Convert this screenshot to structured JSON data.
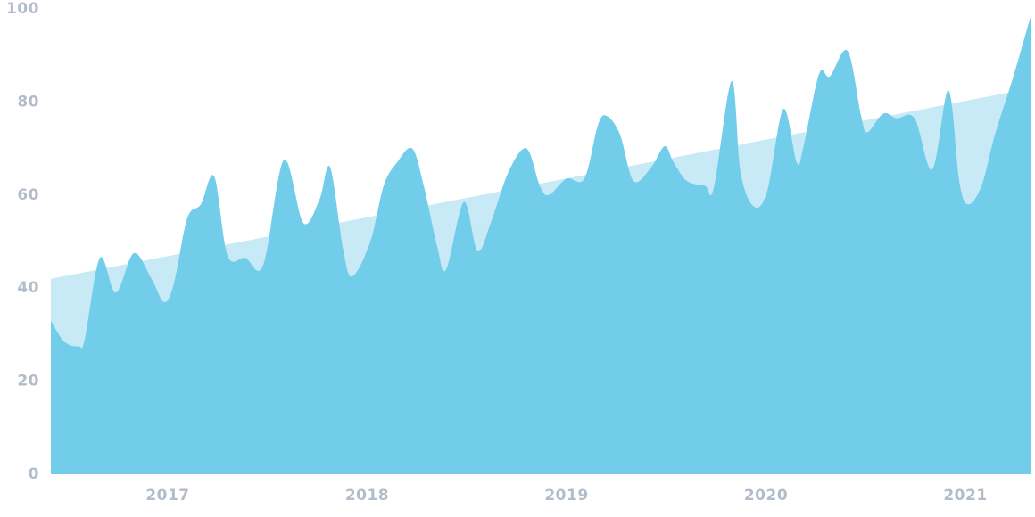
{
  "chart_data": {
    "type": "area",
    "xlim": [
      2016.414,
      2021.331
    ],
    "xticks": [
      2017,
      2018,
      2019,
      2020,
      2021
    ],
    "ylim": [
      0,
      100
    ],
    "yticks": [
      0,
      20,
      40,
      60,
      80,
      100
    ],
    "grid": false,
    "series": [
      {
        "color": "#c8eaf6",
        "x": [
          2016.414,
          2021.331
        ],
        "values": [
          42,
          83
        ]
      },
      {
        "color": "#72cdea",
        "x": [
          2016.414,
          2016.481,
          2016.553,
          2016.584,
          2016.66,
          2016.74,
          2016.83,
          2016.919,
          2016.982,
          2017.031,
          2017.098,
          2017.166,
          2017.233,
          2017.3,
          2017.389,
          2017.479,
          2017.582,
          2017.68,
          2017.761,
          2017.814,
          2017.881,
          2017.926,
          2018.016,
          2018.083,
          2018.15,
          2018.226,
          2018.284,
          2018.351,
          2018.396,
          2018.485,
          2018.553,
          2018.62,
          2018.709,
          2018.799,
          2018.866,
          2018.911,
          2019.0,
          2019.089,
          2019.157,
          2019.201,
          2019.268,
          2019.336,
          2019.425,
          2019.492,
          2019.537,
          2019.604,
          2019.694,
          2019.738,
          2019.828,
          2019.872,
          2019.94,
          2020.007,
          2020.087,
          2020.154,
          2020.186,
          2020.266,
          2020.32,
          2020.409,
          2020.477,
          2020.508,
          2020.588,
          2020.655,
          2020.745,
          2020.834,
          2020.915,
          2020.969,
          2021.013,
          2021.081,
          2021.148,
          2021.237,
          2021.331
        ],
        "values": [
          33,
          28.5,
          27.5,
          29,
          46.5,
          39,
          47.5,
          42,
          37,
          41,
          55,
          58,
          64,
          47,
          46.5,
          45,
          67.5,
          54,
          59,
          66,
          48,
          42.5,
          50,
          62,
          67,
          70,
          62,
          49,
          44,
          58.5,
          48,
          54,
          65,
          70,
          62,
          60,
          63.5,
          63.5,
          75,
          77,
          73,
          63,
          66,
          70.5,
          67,
          63,
          62,
          61.5,
          84.5,
          65,
          57.5,
          61,
          78.5,
          67,
          70,
          86,
          85.5,
          91,
          77,
          73.5,
          77.5,
          76.5,
          76.5,
          65.5,
          82.5,
          63,
          58,
          62,
          73,
          85,
          99
        ]
      }
    ]
  }
}
